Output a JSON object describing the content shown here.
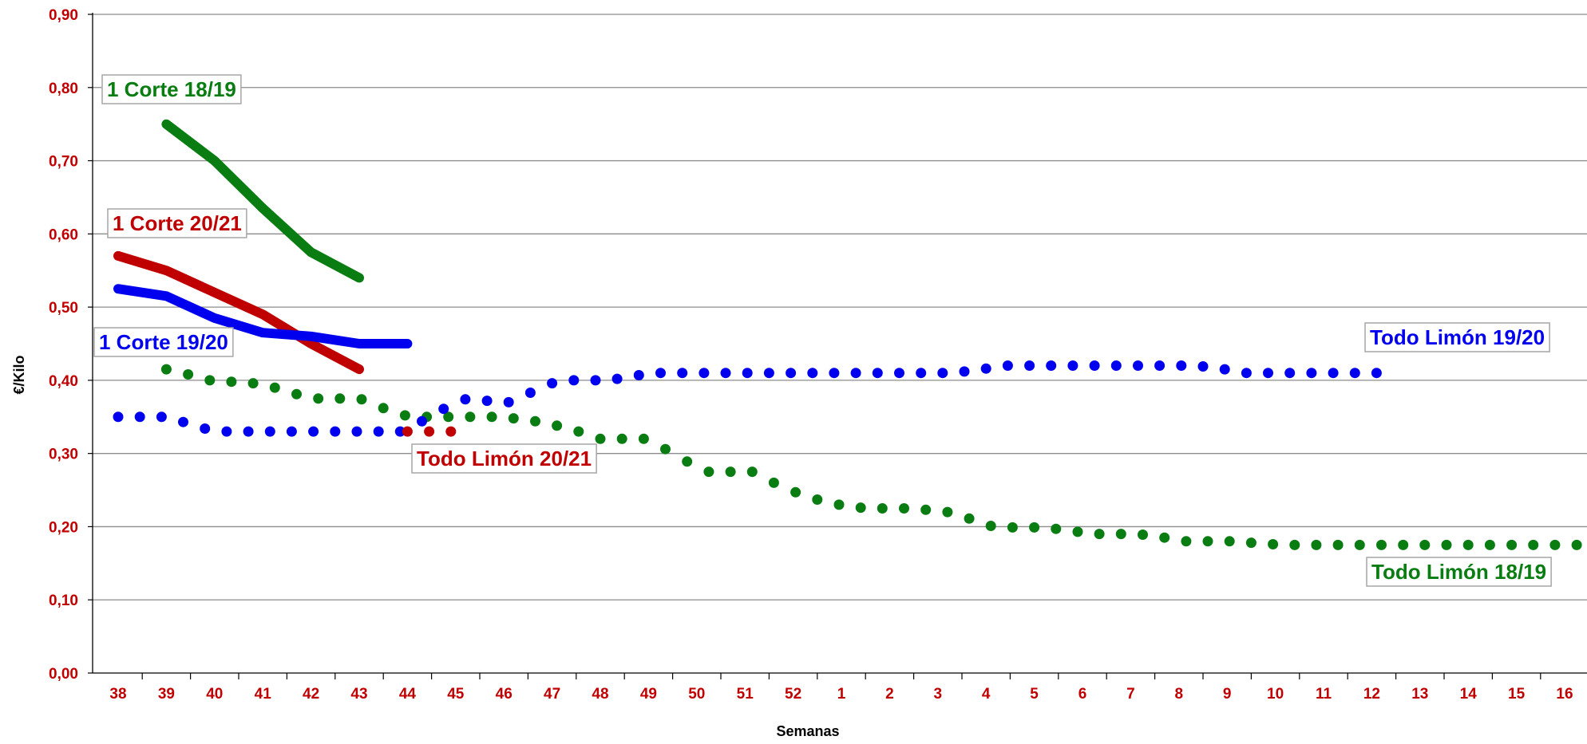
{
  "colors": {
    "green": "#0a7d12",
    "red": "#c00000",
    "blue": "#0000ee",
    "grid": "#8c8c8c",
    "axis": "#000000",
    "tick_label": "#c00000",
    "annotation_border": "#a6a6a6"
  },
  "chart_data": {
    "type": "line",
    "title": "",
    "xlabel": "Semanas",
    "ylabel": "€/Kilo",
    "ylim": [
      0,
      0.9
    ],
    "yticks": [
      "0,00",
      "0,10",
      "0,20",
      "0,30",
      "0,40",
      "0,50",
      "0,60",
      "0,70",
      "0,80",
      "0,90"
    ],
    "grid": true,
    "legend": "none",
    "categories": [
      "38",
      "39",
      "40",
      "41",
      "42",
      "43",
      "44",
      "45",
      "46",
      "47",
      "48",
      "49",
      "50",
      "51",
      "52",
      "1",
      "2",
      "3",
      "4",
      "5",
      "6",
      "7",
      "8",
      "9",
      "10",
      "11",
      "12",
      "13",
      "14",
      "15",
      "16"
    ],
    "series": [
      {
        "name": "1 Corte 18/19",
        "style": "solid",
        "color": "green",
        "points": [
          [
            1,
            0.75
          ],
          [
            2.0,
            0.7
          ],
          [
            3.0,
            0.635
          ],
          [
            4.0,
            0.575
          ],
          [
            5.0,
            0.54
          ]
        ]
      },
      {
        "name": "1 Corte 20/21",
        "style": "solid",
        "color": "red",
        "points": [
          [
            0,
            0.57
          ],
          [
            1,
            0.55
          ],
          [
            2,
            0.52
          ],
          [
            3,
            0.49
          ],
          [
            4,
            0.45
          ],
          [
            5,
            0.415
          ]
        ]
      },
      {
        "name": "1 Corte 19/20",
        "style": "solid",
        "color": "blue",
        "points": [
          [
            0,
            0.525
          ],
          [
            1,
            0.515
          ],
          [
            2,
            0.485
          ],
          [
            3,
            0.465
          ],
          [
            4,
            0.46
          ],
          [
            5,
            0.45
          ],
          [
            6,
            0.45
          ]
        ]
      },
      {
        "name": "Todo Limón 18/19",
        "style": "dotted",
        "color": "green",
        "points": [
          [
            1,
            0.415
          ],
          [
            1.45,
            0.408
          ],
          [
            1.9,
            0.4
          ],
          [
            2.35,
            0.398
          ],
          [
            2.8,
            0.396
          ],
          [
            3.25,
            0.39
          ],
          [
            3.7,
            0.381
          ],
          [
            4.15,
            0.375
          ],
          [
            4.6,
            0.375
          ],
          [
            5.05,
            0.374
          ],
          [
            5.5,
            0.362
          ],
          [
            5.95,
            0.352
          ],
          [
            6.4,
            0.35
          ],
          [
            6.85,
            0.35
          ],
          [
            7.3,
            0.35
          ],
          [
            7.75,
            0.35
          ],
          [
            8.2,
            0.348
          ],
          [
            8.65,
            0.344
          ],
          [
            9.1,
            0.338
          ],
          [
            9.55,
            0.33
          ],
          [
            10.0,
            0.32
          ],
          [
            10.45,
            0.32
          ],
          [
            10.9,
            0.32
          ],
          [
            11.35,
            0.306
          ],
          [
            11.8,
            0.289
          ],
          [
            12.25,
            0.275
          ],
          [
            12.7,
            0.275
          ],
          [
            13.15,
            0.275
          ],
          [
            13.6,
            0.26
          ],
          [
            14.05,
            0.247
          ],
          [
            14.5,
            0.237
          ],
          [
            14.95,
            0.23
          ],
          [
            15.4,
            0.226
          ],
          [
            15.85,
            0.225
          ],
          [
            16.3,
            0.225
          ],
          [
            16.75,
            0.223
          ],
          [
            17.2,
            0.22
          ],
          [
            17.65,
            0.211
          ],
          [
            18.1,
            0.201
          ],
          [
            18.55,
            0.199
          ],
          [
            19.0,
            0.199
          ],
          [
            19.45,
            0.197
          ],
          [
            19.9,
            0.193
          ],
          [
            20.35,
            0.19
          ],
          [
            20.8,
            0.19
          ],
          [
            21.25,
            0.189
          ],
          [
            21.7,
            0.185
          ],
          [
            22.15,
            0.18
          ],
          [
            22.6,
            0.18
          ],
          [
            23.05,
            0.18
          ],
          [
            23.5,
            0.178
          ],
          [
            23.95,
            0.176
          ],
          [
            24.4,
            0.175
          ],
          [
            24.85,
            0.175
          ],
          [
            25.3,
            0.175
          ],
          [
            25.75,
            0.175
          ],
          [
            26.2,
            0.175
          ],
          [
            26.65,
            0.175
          ],
          [
            27.1,
            0.175
          ],
          [
            27.55,
            0.175
          ],
          [
            28.0,
            0.175
          ],
          [
            28.45,
            0.175
          ],
          [
            28.9,
            0.175
          ],
          [
            29.35,
            0.175
          ],
          [
            29.8,
            0.175
          ],
          [
            30.25,
            0.175
          ]
        ]
      },
      {
        "name": "Todo Limón 19/20",
        "style": "dotted",
        "color": "blue",
        "points": [
          [
            0,
            0.35
          ],
          [
            0.45,
            0.35
          ],
          [
            0.9,
            0.35
          ],
          [
            1.35,
            0.343
          ],
          [
            1.8,
            0.334
          ],
          [
            2.25,
            0.33
          ],
          [
            2.7,
            0.33
          ],
          [
            3.15,
            0.33
          ],
          [
            3.6,
            0.33
          ],
          [
            4.05,
            0.33
          ],
          [
            4.5,
            0.33
          ],
          [
            4.95,
            0.33
          ],
          [
            5.4,
            0.33
          ],
          [
            5.85,
            0.33
          ],
          [
            6.3,
            0.344
          ],
          [
            6.75,
            0.361
          ],
          [
            7.2,
            0.374
          ],
          [
            7.65,
            0.372
          ],
          [
            8.1,
            0.37
          ],
          [
            8.55,
            0.383
          ],
          [
            9.0,
            0.396
          ],
          [
            9.45,
            0.4
          ],
          [
            9.9,
            0.4
          ],
          [
            10.35,
            0.402
          ],
          [
            10.8,
            0.407
          ],
          [
            11.25,
            0.41
          ],
          [
            11.7,
            0.41
          ],
          [
            12.15,
            0.41
          ],
          [
            12.6,
            0.41
          ],
          [
            13.05,
            0.41
          ],
          [
            13.5,
            0.41
          ],
          [
            13.95,
            0.41
          ],
          [
            14.4,
            0.41
          ],
          [
            14.85,
            0.41
          ],
          [
            15.3,
            0.41
          ],
          [
            15.75,
            0.41
          ],
          [
            16.2,
            0.41
          ],
          [
            16.65,
            0.41
          ],
          [
            17.1,
            0.41
          ],
          [
            17.55,
            0.412
          ],
          [
            18.0,
            0.416
          ],
          [
            18.45,
            0.42
          ],
          [
            18.9,
            0.42
          ],
          [
            19.35,
            0.42
          ],
          [
            19.8,
            0.42
          ],
          [
            20.25,
            0.42
          ],
          [
            20.7,
            0.42
          ],
          [
            21.15,
            0.42
          ],
          [
            21.6,
            0.42
          ],
          [
            22.05,
            0.42
          ],
          [
            22.5,
            0.419
          ],
          [
            22.95,
            0.415
          ],
          [
            23.4,
            0.41
          ],
          [
            23.85,
            0.41
          ],
          [
            24.3,
            0.41
          ],
          [
            24.75,
            0.41
          ],
          [
            25.2,
            0.41
          ],
          [
            25.65,
            0.41
          ],
          [
            26.1,
            0.41
          ]
        ]
      },
      {
        "name": "Todo Limón 20/21",
        "style": "dotted",
        "color": "red",
        "points": [
          [
            6.0,
            0.33
          ],
          [
            6.45,
            0.33
          ],
          [
            6.9,
            0.33
          ]
        ]
      }
    ],
    "annotations": [
      {
        "text": "1 Corte 18/19",
        "color": "green"
      },
      {
        "text": "1 Corte 20/21",
        "color": "red"
      },
      {
        "text": "1 Corte 19/20",
        "color": "blue"
      },
      {
        "text": "Todo Limón 19/20",
        "color": "blue"
      },
      {
        "text": "Todo Limón 20/21",
        "color": "red"
      },
      {
        "text": "Todo Limón 18/19",
        "color": "green"
      }
    ]
  }
}
